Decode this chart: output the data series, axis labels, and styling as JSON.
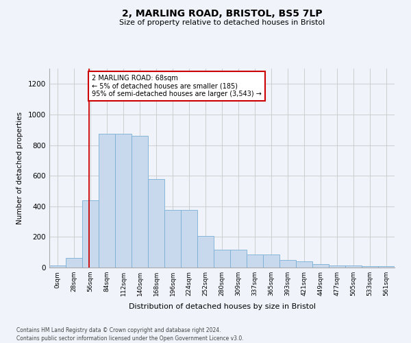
{
  "title_line1": "2, MARLING ROAD, BRISTOL, BS5 7LP",
  "title_line2": "Size of property relative to detached houses in Bristol",
  "xlabel": "Distribution of detached houses by size in Bristol",
  "ylabel": "Number of detached properties",
  "categories": [
    "0sqm",
    "28sqm",
    "56sqm",
    "84sqm",
    "112sqm",
    "140sqm",
    "168sqm",
    "196sqm",
    "224sqm",
    "252sqm",
    "280sqm",
    "309sqm",
    "337sqm",
    "365sqm",
    "393sqm",
    "421sqm",
    "449sqm",
    "477sqm",
    "505sqm",
    "533sqm",
    "561sqm"
  ],
  "bar_values": [
    12,
    65,
    440,
    875,
    875,
    860,
    580,
    375,
    375,
    205,
    115,
    115,
    85,
    85,
    50,
    40,
    22,
    12,
    12,
    8,
    8
  ],
  "bar_color": "#c8d9ee",
  "bar_edgecolor": "#7aaed6",
  "vline_color": "#cc0000",
  "ylim": [
    0,
    1300
  ],
  "yticks": [
    0,
    200,
    400,
    600,
    800,
    1000,
    1200
  ],
  "annotation_title": "2 MARLING ROAD: 68sqm",
  "annotation_line1": "← 5% of detached houses are smaller (185)",
  "annotation_line2": "95% of semi-detached houses are larger (3,543) →",
  "annotation_box_color": "#ffffff",
  "annotation_border_color": "#cc0000",
  "footer_line1": "Contains HM Land Registry data © Crown copyright and database right 2024.",
  "footer_line2": "Contains public sector information licensed under the Open Government Licence v3.0.",
  "background_color": "#f0f4fa",
  "grid_color": "#c8c8c8",
  "vline_x_index": 2.43
}
